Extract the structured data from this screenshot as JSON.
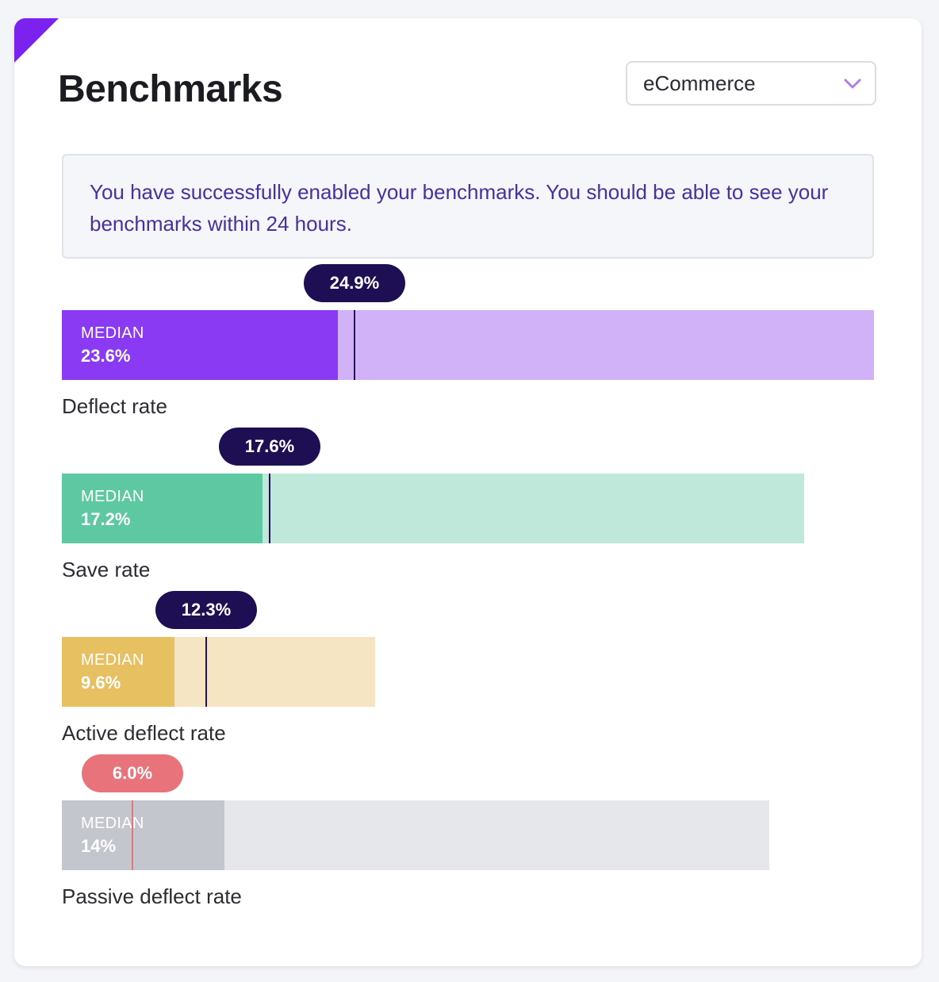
{
  "card": {
    "title": "Benchmarks",
    "accent_color": "#7c22ee"
  },
  "industry_select": {
    "value": "eCommerce",
    "icon": "chevron-down-icon",
    "icon_color": "#b37de6"
  },
  "notice": {
    "text": "You have successfully enabled your benchmarks. You should be able to see your benchmarks within 24 hours."
  },
  "median_label": "MEDIAN",
  "metrics": [
    {
      "label": "Deflect rate",
      "median_value": "23.6%",
      "your_value": "24.9%",
      "scale_max_percent": 70,
      "median_fill_fraction": 0.34,
      "marker_fraction": 0.36,
      "colors": {
        "fill": "#8a3af2",
        "track": "#d1b2f8",
        "bubble": "#1e0f55",
        "line": "#1e0f55"
      }
    },
    {
      "label": "Save rate",
      "median_value": "17.2%",
      "your_value": "17.6%",
      "scale_max_percent": 64,
      "median_fill_fraction": 0.27,
      "marker_fraction": 0.28,
      "colors": {
        "fill": "#5dc8a2",
        "track": "#c0e8da",
        "bubble": "#1e0f55",
        "line": "#1e0f55"
      }
    },
    {
      "label": "Active deflect rate",
      "median_value": "9.6%",
      "your_value": "12.3%",
      "scale_max_percent": 27,
      "median_fill_fraction": 0.36,
      "marker_fraction": 0.46,
      "colors": {
        "fill": "#e7c062",
        "track": "#f5e5c2",
        "bubble": "#1e0f55",
        "line": "#1e0f55"
      }
    },
    {
      "label": "Passive deflect rate",
      "median_value": "14%",
      "your_value": "6.0%",
      "scale_max_percent": 61,
      "median_fill_fraction": 0.23,
      "marker_fraction": 0.1,
      "colors": {
        "fill": "#c4c6cd",
        "track": "#e6e7ea",
        "bubble": "#e9737a",
        "line": "#e9737a"
      }
    }
  ]
}
